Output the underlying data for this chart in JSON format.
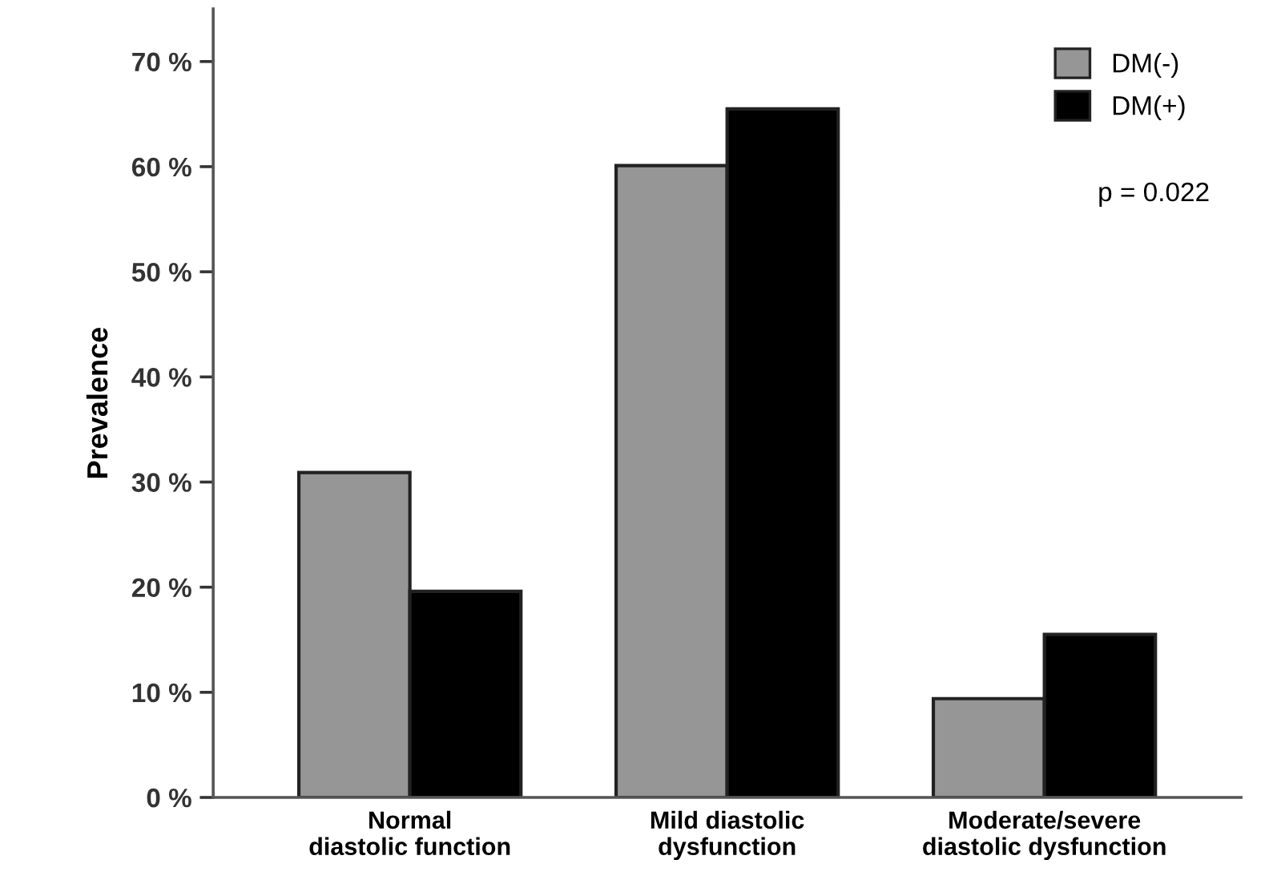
{
  "chart_data": {
    "type": "bar",
    "ylabel": "Prevalence",
    "categories": [
      "Normal\ndiastolic function",
      "Mild diastolic\ndysfunction",
      "Moderate/severe\ndiastolic dysfunction"
    ],
    "series": [
      {
        "name": "DM(-)",
        "color": "#969696",
        "values": [
          30.9,
          60.1,
          9.4
        ]
      },
      {
        "name": "DM(+)",
        "color": "#000000",
        "values": [
          19.6,
          65.5,
          15.5
        ]
      }
    ],
    "ylim": [
      0,
      75
    ],
    "yticks": [
      {
        "value": 0,
        "label": "0 %"
      },
      {
        "value": 10,
        "label": "10 %"
      },
      {
        "value": 20,
        "label": "20 %"
      },
      {
        "value": 30,
        "label": "30 %"
      },
      {
        "value": 40,
        "label": "40 %"
      },
      {
        "value": 50,
        "label": "50 %"
      },
      {
        "value": 60,
        "label": "60 %"
      },
      {
        "value": 70,
        "label": "70 %"
      }
    ],
    "annotations": [
      "p = 0.022"
    ],
    "legend": "top right",
    "grid": false
  }
}
